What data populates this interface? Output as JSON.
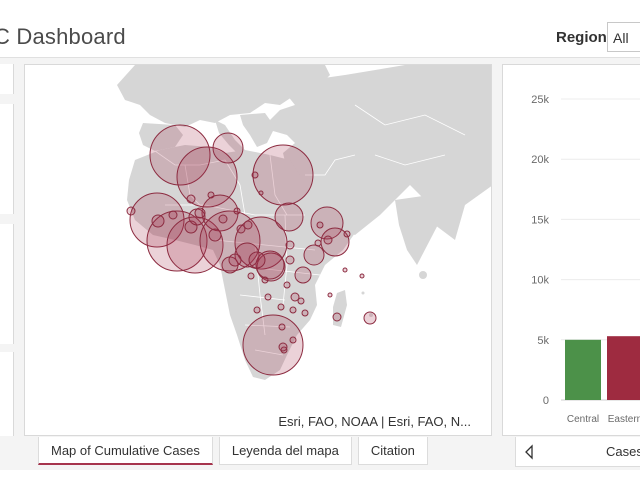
{
  "header": {
    "title": "C Dashboard",
    "region_label": "Region",
    "region_value": "All"
  },
  "map": {
    "attribution": "Esri, FAO, NOAA | Esri, FAO, N...",
    "land_color": "#d6d6d6",
    "bubble_fill": "#a6344d",
    "bubble_stroke": "#8c2b40"
  },
  "tabs": [
    {
      "label": "Map of Cumulative Cases",
      "active": true
    },
    {
      "label": "Leyenda del mapa",
      "active": false
    },
    {
      "label": "Citation",
      "active": false
    }
  ],
  "chart_tab": {
    "label": "Cases"
  },
  "chart_data": {
    "type": "bar",
    "categories": [
      "Central",
      "Eastern"
    ],
    "values": [
      5000,
      5300
    ],
    "colors": [
      "#4c9149",
      "#9e2b40"
    ],
    "ylim": [
      0,
      25000
    ],
    "yticks": [
      "0",
      "5k",
      "10k",
      "15k",
      "20k",
      "25k"
    ],
    "grid": true
  }
}
